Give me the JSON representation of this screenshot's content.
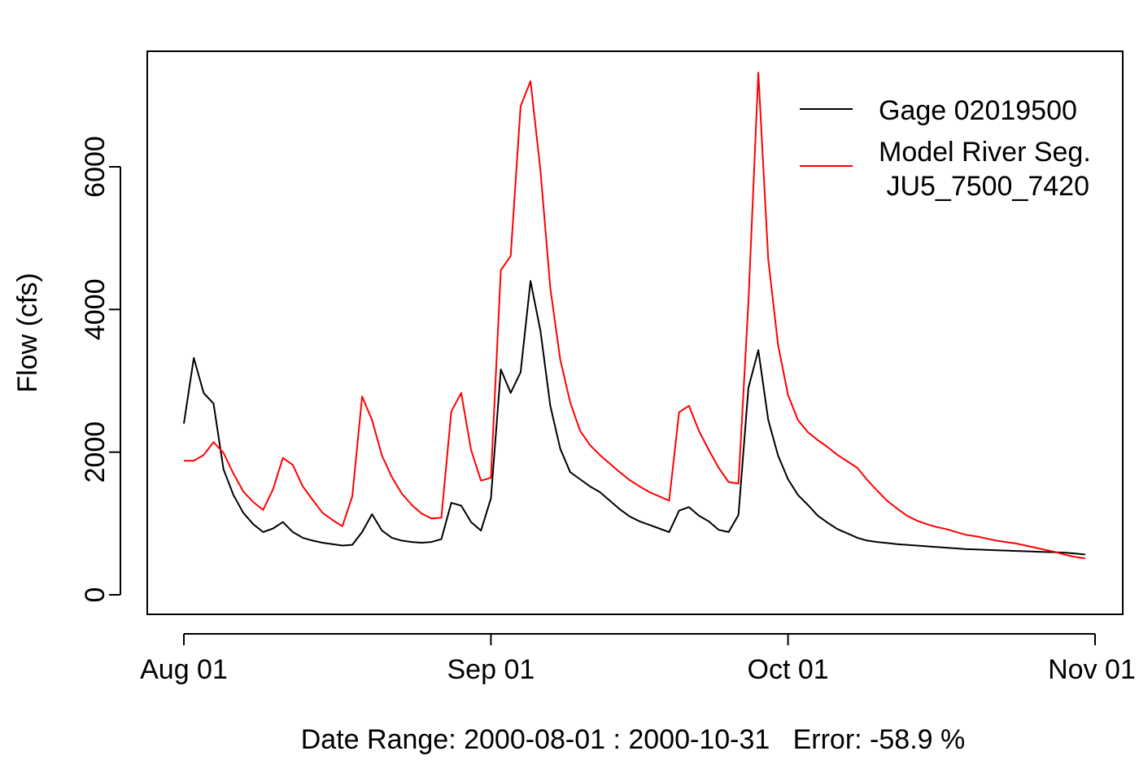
{
  "chart_data": {
    "type": "line",
    "title": "",
    "xlabel": "Date Range: 2000-08-01 : 2000-10-31   Error: -58.9 %",
    "ylabel": "Flow (cfs)",
    "xlim": [
      "2000-08-01",
      "2000-11-01"
    ],
    "ylim": [
      0,
      7400
    ],
    "y_ticks": [
      0,
      2000,
      4000,
      6000
    ],
    "x_ticks": [
      {
        "date": "2000-08-01",
        "label": "Aug 01"
      },
      {
        "date": "2000-09-01",
        "label": "Sep 01"
      },
      {
        "date": "2000-10-01",
        "label": "Oct 01"
      },
      {
        "date": "2000-11-01",
        "label": "Nov 01"
      }
    ],
    "grid": false,
    "legend": {
      "position": "top-right",
      "entries": [
        {
          "label": "Gage 02019500",
          "color": "#000000"
        },
        {
          "label": "Model River Seg.",
          "label_line2": " JU5_7500_7420",
          "color": "#ff0000"
        }
      ]
    },
    "series": [
      {
        "color": "#000000",
        "points": [
          [
            "2000-08-01",
            2400
          ],
          [
            "2000-08-02",
            3320
          ],
          [
            "2000-08-03",
            2830
          ],
          [
            "2000-08-04",
            2680
          ],
          [
            "2000-08-05",
            1760
          ],
          [
            "2000-08-06",
            1400
          ],
          [
            "2000-08-07",
            1150
          ],
          [
            "2000-08-08",
            990
          ],
          [
            "2000-08-09",
            880
          ],
          [
            "2000-08-10",
            930
          ],
          [
            "2000-08-11",
            1020
          ],
          [
            "2000-08-12",
            880
          ],
          [
            "2000-08-13",
            800
          ],
          [
            "2000-08-14",
            760
          ],
          [
            "2000-08-15",
            730
          ],
          [
            "2000-08-16",
            710
          ],
          [
            "2000-08-17",
            690
          ],
          [
            "2000-08-18",
            700
          ],
          [
            "2000-08-19",
            880
          ],
          [
            "2000-08-20",
            1130
          ],
          [
            "2000-08-21",
            900
          ],
          [
            "2000-08-22",
            800
          ],
          [
            "2000-08-23",
            760
          ],
          [
            "2000-08-24",
            740
          ],
          [
            "2000-08-25",
            730
          ],
          [
            "2000-08-26",
            740
          ],
          [
            "2000-08-27",
            780
          ],
          [
            "2000-08-28",
            1290
          ],
          [
            "2000-08-29",
            1250
          ],
          [
            "2000-08-30",
            1020
          ],
          [
            "2000-08-31",
            900
          ],
          [
            "2000-09-01",
            1350
          ],
          [
            "2000-09-02",
            3160
          ],
          [
            "2000-09-03",
            2830
          ],
          [
            "2000-09-04",
            3120
          ],
          [
            "2000-09-05",
            4400
          ],
          [
            "2000-09-06",
            3700
          ],
          [
            "2000-09-07",
            2650
          ],
          [
            "2000-09-08",
            2050
          ],
          [
            "2000-09-09",
            1720
          ],
          [
            "2000-09-10",
            1620
          ],
          [
            "2000-09-11",
            1520
          ],
          [
            "2000-09-12",
            1440
          ],
          [
            "2000-09-13",
            1320
          ],
          [
            "2000-09-14",
            1200
          ],
          [
            "2000-09-15",
            1100
          ],
          [
            "2000-09-16",
            1030
          ],
          [
            "2000-09-17",
            980
          ],
          [
            "2000-09-18",
            930
          ],
          [
            "2000-09-19",
            880
          ],
          [
            "2000-09-20",
            1180
          ],
          [
            "2000-09-21",
            1230
          ],
          [
            "2000-09-22",
            1110
          ],
          [
            "2000-09-23",
            1030
          ],
          [
            "2000-09-24",
            910
          ],
          [
            "2000-09-25",
            880
          ],
          [
            "2000-09-26",
            1120
          ],
          [
            "2000-09-27",
            2900
          ],
          [
            "2000-09-28",
            3430
          ],
          [
            "2000-09-29",
            2450
          ],
          [
            "2000-09-30",
            1950
          ],
          [
            "2000-10-01",
            1620
          ],
          [
            "2000-10-02",
            1400
          ],
          [
            "2000-10-03",
            1260
          ],
          [
            "2000-10-04",
            1110
          ],
          [
            "2000-10-05",
            1010
          ],
          [
            "2000-10-06",
            920
          ],
          [
            "2000-10-07",
            860
          ],
          [
            "2000-10-08",
            800
          ],
          [
            "2000-10-09",
            760
          ],
          [
            "2000-10-10",
            740
          ],
          [
            "2000-10-11",
            725
          ],
          [
            "2000-10-12",
            710
          ],
          [
            "2000-10-13",
            700
          ],
          [
            "2000-10-14",
            690
          ],
          [
            "2000-10-15",
            680
          ],
          [
            "2000-10-16",
            670
          ],
          [
            "2000-10-17",
            660
          ],
          [
            "2000-10-18",
            650
          ],
          [
            "2000-10-19",
            640
          ],
          [
            "2000-10-20",
            635
          ],
          [
            "2000-10-21",
            630
          ],
          [
            "2000-10-22",
            625
          ],
          [
            "2000-10-23",
            620
          ],
          [
            "2000-10-24",
            615
          ],
          [
            "2000-10-25",
            610
          ],
          [
            "2000-10-26",
            605
          ],
          [
            "2000-10-27",
            600
          ],
          [
            "2000-10-28",
            595
          ],
          [
            "2000-10-29",
            590
          ],
          [
            "2000-10-30",
            580
          ],
          [
            "2000-10-31",
            565
          ]
        ]
      },
      {
        "color": "#ff0000",
        "points": [
          [
            "2000-08-01",
            1880
          ],
          [
            "2000-08-02",
            1880
          ],
          [
            "2000-08-03",
            1960
          ],
          [
            "2000-08-04",
            2140
          ],
          [
            "2000-08-05",
            1990
          ],
          [
            "2000-08-06",
            1700
          ],
          [
            "2000-08-07",
            1450
          ],
          [
            "2000-08-08",
            1300
          ],
          [
            "2000-08-09",
            1190
          ],
          [
            "2000-08-10",
            1480
          ],
          [
            "2000-08-11",
            1920
          ],
          [
            "2000-08-12",
            1820
          ],
          [
            "2000-08-13",
            1520
          ],
          [
            "2000-08-14",
            1330
          ],
          [
            "2000-08-15",
            1150
          ],
          [
            "2000-08-16",
            1050
          ],
          [
            "2000-08-17",
            960
          ],
          [
            "2000-08-18",
            1380
          ],
          [
            "2000-08-19",
            2780
          ],
          [
            "2000-08-20",
            2450
          ],
          [
            "2000-08-21",
            1950
          ],
          [
            "2000-08-22",
            1650
          ],
          [
            "2000-08-23",
            1420
          ],
          [
            "2000-08-24",
            1260
          ],
          [
            "2000-08-25",
            1140
          ],
          [
            "2000-08-26",
            1070
          ],
          [
            "2000-08-27",
            1080
          ],
          [
            "2000-08-28",
            2570
          ],
          [
            "2000-08-29",
            2830
          ],
          [
            "2000-08-30",
            2030
          ],
          [
            "2000-08-31",
            1600
          ],
          [
            "2000-09-01",
            1640
          ],
          [
            "2000-09-02",
            4550
          ],
          [
            "2000-09-03",
            4750
          ],
          [
            "2000-09-04",
            6850
          ],
          [
            "2000-09-05",
            7200
          ],
          [
            "2000-09-06",
            5950
          ],
          [
            "2000-09-07",
            4300
          ],
          [
            "2000-09-08",
            3300
          ],
          [
            "2000-09-09",
            2700
          ],
          [
            "2000-09-10",
            2300
          ],
          [
            "2000-09-11",
            2100
          ],
          [
            "2000-09-12",
            1960
          ],
          [
            "2000-09-13",
            1840
          ],
          [
            "2000-09-14",
            1720
          ],
          [
            "2000-09-15",
            1610
          ],
          [
            "2000-09-16",
            1520
          ],
          [
            "2000-09-17",
            1440
          ],
          [
            "2000-09-18",
            1380
          ],
          [
            "2000-09-19",
            1320
          ],
          [
            "2000-09-20",
            2560
          ],
          [
            "2000-09-21",
            2650
          ],
          [
            "2000-09-22",
            2300
          ],
          [
            "2000-09-23",
            2030
          ],
          [
            "2000-09-24",
            1780
          ],
          [
            "2000-09-25",
            1580
          ],
          [
            "2000-09-26",
            1560
          ],
          [
            "2000-09-27",
            4100
          ],
          [
            "2000-09-28",
            7320
          ],
          [
            "2000-09-29",
            4700
          ],
          [
            "2000-09-30",
            3500
          ],
          [
            "2000-10-01",
            2800
          ],
          [
            "2000-10-02",
            2450
          ],
          [
            "2000-10-03",
            2280
          ],
          [
            "2000-10-04",
            2170
          ],
          [
            "2000-10-05",
            2070
          ],
          [
            "2000-10-06",
            1960
          ],
          [
            "2000-10-07",
            1870
          ],
          [
            "2000-10-08",
            1780
          ],
          [
            "2000-10-09",
            1610
          ],
          [
            "2000-10-10",
            1460
          ],
          [
            "2000-10-11",
            1320
          ],
          [
            "2000-10-12",
            1210
          ],
          [
            "2000-10-13",
            1110
          ],
          [
            "2000-10-14",
            1040
          ],
          [
            "2000-10-15",
            990
          ],
          [
            "2000-10-16",
            950
          ],
          [
            "2000-10-17",
            920
          ],
          [
            "2000-10-18",
            880
          ],
          [
            "2000-10-19",
            840
          ],
          [
            "2000-10-20",
            820
          ],
          [
            "2000-10-21",
            790
          ],
          [
            "2000-10-22",
            760
          ],
          [
            "2000-10-23",
            740
          ],
          [
            "2000-10-24",
            720
          ],
          [
            "2000-10-25",
            690
          ],
          [
            "2000-10-26",
            660
          ],
          [
            "2000-10-27",
            630
          ],
          [
            "2000-10-28",
            600
          ],
          [
            "2000-10-29",
            560
          ],
          [
            "2000-10-30",
            530
          ],
          [
            "2000-10-31",
            510
          ]
        ]
      }
    ]
  }
}
